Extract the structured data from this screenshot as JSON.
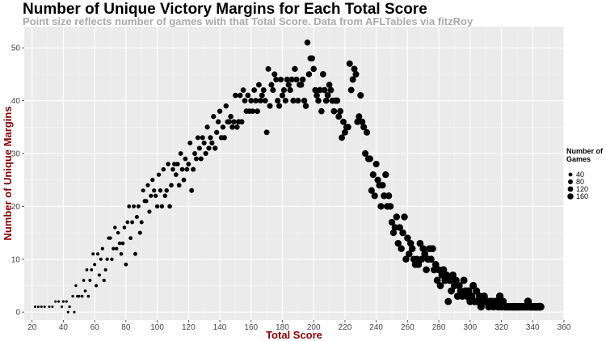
{
  "chart_data": {
    "type": "scatter",
    "title": "Number of Unique Victory Margins for Each Total Score",
    "subtitle": "Point size reflects number of games with that Total Score. Data from AFLTables via fitzRoy",
    "xlabel": "Total Score",
    "ylabel": "Number of Unique Margins",
    "xlim": [
      15,
      360
    ],
    "ylim": [
      -1.5,
      54
    ],
    "xticks": [
      20,
      40,
      60,
      80,
      100,
      120,
      140,
      160,
      180,
      200,
      220,
      240,
      260,
      280,
      300,
      320,
      340,
      360
    ],
    "yticks": [
      0,
      10,
      20,
      30,
      40,
      50
    ],
    "grid": true,
    "legend": {
      "title_lines": [
        "Number of",
        "Games"
      ],
      "placement": "right",
      "entries": [
        {
          "label": "40",
          "value": 40
        },
        {
          "label": "80",
          "value": 80
        },
        {
          "label": "120",
          "value": 120
        },
        {
          "label": "160",
          "value": 160
        }
      ]
    },
    "points": [
      [
        22,
        1,
        5
      ],
      [
        24,
        1,
        5
      ],
      [
        26,
        1,
        5
      ],
      [
        28,
        1,
        5
      ],
      [
        31,
        1,
        5
      ],
      [
        33,
        1,
        5
      ],
      [
        35,
        2,
        6
      ],
      [
        37,
        2,
        6
      ],
      [
        39,
        1,
        6
      ],
      [
        40,
        2,
        7
      ],
      [
        42,
        2,
        7
      ],
      [
        44,
        1,
        7
      ],
      [
        43,
        0,
        6
      ],
      [
        47,
        0,
        6
      ],
      [
        46,
        3,
        9
      ],
      [
        48,
        5,
        10
      ],
      [
        49,
        3,
        10
      ],
      [
        50,
        3,
        11
      ],
      [
        52,
        3,
        12
      ],
      [
        53,
        6,
        13
      ],
      [
        54,
        4,
        14
      ],
      [
        55,
        8,
        15
      ],
      [
        56,
        3,
        13
      ],
      [
        57,
        6,
        16
      ],
      [
        58,
        8,
        17
      ],
      [
        59,
        11,
        18
      ],
      [
        60,
        9,
        19
      ],
      [
        61,
        5,
        19
      ],
      [
        62,
        11,
        20
      ],
      [
        63,
        7,
        21
      ],
      [
        64,
        10,
        22
      ],
      [
        65,
        12,
        23
      ],
      [
        66,
        6,
        23
      ],
      [
        67,
        8,
        24
      ],
      [
        68,
        10,
        25
      ],
      [
        69,
        14,
        26
      ],
      [
        70,
        14,
        27
      ],
      [
        71,
        10,
        28
      ],
      [
        72,
        12,
        29
      ],
      [
        73,
        16,
        30
      ],
      [
        74,
        12,
        31
      ],
      [
        75,
        15,
        32
      ],
      [
        76,
        13,
        33
      ],
      [
        77,
        11,
        34
      ],
      [
        78,
        13,
        35
      ],
      [
        79,
        16,
        36
      ],
      [
        80,
        9,
        37
      ],
      [
        81,
        17,
        38
      ],
      [
        82,
        20,
        39
      ],
      [
        83,
        14,
        40
      ],
      [
        84,
        17,
        41
      ],
      [
        85,
        20,
        42
      ],
      [
        86,
        11,
        43
      ],
      [
        87,
        18,
        44
      ],
      [
        88,
        20,
        45
      ],
      [
        89,
        15,
        46
      ],
      [
        90,
        17,
        47
      ],
      [
        91,
        23,
        48
      ],
      [
        92,
        21,
        49
      ],
      [
        93,
        21,
        50
      ],
      [
        94,
        24,
        51
      ],
      [
        95,
        19,
        52
      ],
      [
        96,
        22,
        53
      ],
      [
        97,
        25,
        54
      ],
      [
        98,
        23,
        55
      ],
      [
        99,
        22,
        56
      ],
      [
        100,
        20,
        57
      ],
      [
        101,
        26,
        58
      ],
      [
        102,
        23,
        59
      ],
      [
        103,
        20,
        60
      ],
      [
        104,
        27,
        61
      ],
      [
        105,
        22,
        62
      ],
      [
        106,
        23,
        63
      ],
      [
        107,
        28,
        64
      ],
      [
        108,
        20,
        65
      ],
      [
        109,
        24,
        66
      ],
      [
        110,
        27,
        67
      ],
      [
        111,
        28,
        68
      ],
      [
        112,
        26,
        69
      ],
      [
        113,
        28,
        70
      ],
      [
        114,
        24,
        71
      ],
      [
        115,
        30,
        72
      ],
      [
        116,
        27,
        73
      ],
      [
        117,
        25,
        74
      ],
      [
        118,
        29,
        75
      ],
      [
        119,
        27,
        76
      ],
      [
        120,
        28,
        77
      ],
      [
        121,
        32,
        78
      ],
      [
        122,
        23,
        79
      ],
      [
        123,
        27,
        80
      ],
      [
        124,
        30,
        81
      ],
      [
        125,
        29,
        82
      ],
      [
        126,
        33,
        83
      ],
      [
        127,
        31,
        84
      ],
      [
        128,
        29,
        85
      ],
      [
        129,
        33,
        86
      ],
      [
        130,
        32,
        87
      ],
      [
        131,
        30,
        88
      ],
      [
        132,
        35,
        89
      ],
      [
        133,
        31,
        90
      ],
      [
        134,
        33,
        91
      ],
      [
        135,
        32,
        92
      ],
      [
        136,
        37,
        93
      ],
      [
        137,
        31,
        94
      ],
      [
        138,
        34,
        95
      ],
      [
        139,
        36,
        96
      ],
      [
        140,
        38,
        97
      ],
      [
        141,
        33,
        98
      ],
      [
        142,
        35,
        99
      ],
      [
        143,
        33,
        100
      ],
      [
        144,
        39,
        101
      ],
      [
        145,
        36,
        102
      ],
      [
        146,
        36,
        103
      ],
      [
        147,
        37,
        104
      ],
      [
        148,
        35,
        105
      ],
      [
        149,
        36,
        106
      ],
      [
        150,
        41,
        107
      ],
      [
        151,
        35,
        108
      ],
      [
        152,
        36,
        109
      ],
      [
        153,
        41,
        110
      ],
      [
        154,
        36,
        111
      ],
      [
        155,
        42,
        112
      ],
      [
        156,
        40,
        113
      ],
      [
        157,
        38,
        114
      ],
      [
        158,
        41,
        115
      ],
      [
        159,
        38,
        116
      ],
      [
        160,
        40,
        117
      ],
      [
        161,
        38,
        118
      ],
      [
        162,
        42,
        119
      ],
      [
        163,
        40,
        120
      ],
      [
        164,
        38,
        121
      ],
      [
        165,
        43,
        122
      ],
      [
        166,
        40,
        123
      ],
      [
        167,
        41,
        124
      ],
      [
        168,
        42,
        125
      ],
      [
        169,
        40,
        126
      ],
      [
        170,
        34,
        127
      ],
      [
        171,
        46,
        128
      ],
      [
        172,
        39,
        129
      ],
      [
        173,
        43,
        130
      ],
      [
        174,
        42,
        131
      ],
      [
        175,
        45,
        132
      ],
      [
        176,
        44,
        133
      ],
      [
        177,
        40,
        134
      ],
      [
        178,
        39,
        135
      ],
      [
        179,
        44,
        136
      ],
      [
        180,
        41,
        137
      ],
      [
        181,
        42,
        138
      ],
      [
        182,
        40,
        139
      ],
      [
        183,
        44,
        140
      ],
      [
        184,
        43,
        141
      ],
      [
        185,
        42,
        142
      ],
      [
        186,
        44,
        143
      ],
      [
        187,
        40,
        144
      ],
      [
        188,
        46,
        145
      ],
      [
        189,
        44,
        146
      ],
      [
        190,
        40,
        147
      ],
      [
        191,
        43,
        148
      ],
      [
        192,
        43,
        149
      ],
      [
        193,
        44,
        150
      ],
      [
        194,
        40,
        151
      ],
      [
        195,
        39,
        152
      ],
      [
        196,
        51,
        153
      ],
      [
        197,
        45,
        154
      ],
      [
        198,
        48,
        155
      ],
      [
        199,
        48,
        156
      ],
      [
        200,
        46,
        157
      ],
      [
        201,
        42,
        158
      ],
      [
        202,
        41,
        159
      ],
      [
        203,
        40,
        160
      ],
      [
        204,
        42,
        161
      ],
      [
        205,
        38,
        162
      ],
      [
        206,
        45,
        163
      ],
      [
        207,
        42,
        164
      ],
      [
        208,
        40,
        165
      ],
      [
        209,
        41,
        166
      ],
      [
        210,
        43,
        167
      ],
      [
        211,
        42,
        168
      ],
      [
        212,
        40,
        169
      ],
      [
        213,
        38,
        170
      ],
      [
        214,
        40,
        171
      ],
      [
        215,
        40,
        172
      ],
      [
        216,
        37,
        173
      ],
      [
        217,
        38,
        174
      ],
      [
        218,
        33,
        175
      ],
      [
        219,
        36,
        176
      ],
      [
        220,
        34,
        177
      ],
      [
        221,
        35,
        178
      ],
      [
        222,
        35,
        179
      ],
      [
        223,
        47,
        180
      ],
      [
        224,
        42,
        181
      ],
      [
        225,
        44,
        182
      ],
      [
        226,
        46,
        183
      ],
      [
        227,
        45,
        184
      ],
      [
        228,
        36,
        185
      ],
      [
        229,
        37,
        186
      ],
      [
        230,
        41,
        187
      ],
      [
        231,
        36,
        188
      ],
      [
        232,
        35,
        189
      ],
      [
        233,
        30,
        190
      ],
      [
        234,
        34,
        191
      ],
      [
        235,
        29,
        192
      ],
      [
        236,
        29,
        193
      ],
      [
        237,
        23,
        194
      ],
      [
        238,
        26,
        195
      ],
      [
        239,
        22,
        196
      ],
      [
        240,
        28,
        197
      ],
      [
        241,
        25,
        198
      ],
      [
        242,
        24,
        199
      ],
      [
        243,
        20,
        200
      ],
      [
        244,
        24,
        201
      ],
      [
        245,
        22,
        202
      ],
      [
        246,
        26,
        203
      ],
      [
        247,
        20,
        204
      ],
      [
        248,
        22,
        205
      ],
      [
        249,
        20,
        206
      ],
      [
        250,
        17,
        207
      ],
      [
        251,
        15,
        208
      ],
      [
        252,
        16,
        209
      ],
      [
        253,
        18,
        210
      ],
      [
        254,
        13,
        211
      ],
      [
        255,
        16,
        212
      ],
      [
        256,
        12,
        213
      ],
      [
        257,
        15,
        214
      ],
      [
        258,
        18,
        215
      ],
      [
        259,
        10,
        216
      ],
      [
        260,
        14,
        217
      ],
      [
        261,
        11,
        218
      ],
      [
        262,
        13,
        219
      ],
      [
        263,
        12,
        220
      ],
      [
        264,
        10,
        221
      ],
      [
        265,
        9,
        222
      ],
      [
        266,
        10,
        223
      ],
      [
        267,
        9,
        224
      ],
      [
        268,
        13,
        225
      ],
      [
        269,
        10,
        226
      ],
      [
        270,
        12,
        227
      ],
      [
        271,
        11,
        228
      ],
      [
        272,
        8,
        229
      ],
      [
        273,
        10,
        230
      ],
      [
        274,
        12,
        231
      ],
      [
        275,
        10,
        232
      ],
      [
        276,
        12,
        233
      ],
      [
        277,
        8,
        234
      ],
      [
        278,
        9,
        235
      ],
      [
        279,
        6,
        236
      ],
      [
        280,
        8,
        237
      ],
      [
        281,
        5,
        238
      ],
      [
        282,
        7,
        239
      ],
      [
        283,
        8,
        240
      ],
      [
        284,
        6,
        241
      ],
      [
        285,
        7,
        242
      ],
      [
        286,
        2,
        243
      ],
      [
        287,
        6,
        244
      ],
      [
        288,
        4,
        245
      ],
      [
        289,
        7,
        246
      ],
      [
        290,
        5,
        247
      ],
      [
        291,
        6,
        248
      ],
      [
        292,
        3,
        249
      ],
      [
        293,
        5,
        250
      ],
      [
        294,
        4,
        251
      ],
      [
        295,
        3,
        252
      ],
      [
        296,
        6,
        253
      ],
      [
        297,
        4,
        254
      ],
      [
        298,
        3,
        255
      ],
      [
        299,
        4,
        256
      ],
      [
        300,
        2,
        257
      ],
      [
        301,
        3,
        258
      ],
      [
        302,
        5,
        259
      ],
      [
        303,
        2,
        260
      ],
      [
        304,
        4,
        261
      ],
      [
        305,
        2,
        262
      ],
      [
        306,
        3,
        263
      ],
      [
        307,
        1,
        264
      ],
      [
        308,
        2,
        265
      ],
      [
        309,
        3,
        266
      ],
      [
        310,
        2,
        267
      ],
      [
        311,
        2,
        268
      ],
      [
        312,
        1,
        269
      ],
      [
        313,
        2,
        270
      ],
      [
        314,
        2,
        271
      ],
      [
        315,
        1,
        272
      ],
      [
        316,
        2,
        273
      ],
      [
        317,
        2,
        274
      ],
      [
        318,
        1,
        275
      ],
      [
        319,
        3,
        276
      ],
      [
        320,
        1,
        277
      ],
      [
        321,
        2,
        278
      ],
      [
        322,
        1,
        279
      ],
      [
        323,
        1,
        280
      ],
      [
        324,
        1,
        281
      ],
      [
        325,
        1,
        282
      ],
      [
        326,
        1,
        283
      ],
      [
        327,
        1,
        284
      ],
      [
        328,
        1,
        285
      ],
      [
        329,
        1,
        286
      ],
      [
        330,
        1,
        287
      ],
      [
        331,
        1,
        288
      ],
      [
        332,
        1,
        289
      ],
      [
        333,
        1,
        290
      ],
      [
        334,
        1,
        291
      ],
      [
        335,
        1,
        292
      ],
      [
        336,
        1,
        293
      ],
      [
        337,
        2,
        294
      ],
      [
        338,
        1,
        295
      ],
      [
        339,
        1,
        296
      ],
      [
        340,
        1,
        297
      ],
      [
        341,
        1,
        298
      ],
      [
        342,
        1,
        299
      ],
      [
        343,
        1,
        300
      ],
      [
        344,
        1,
        301
      ],
      [
        345,
        1,
        302
      ]
    ]
  }
}
